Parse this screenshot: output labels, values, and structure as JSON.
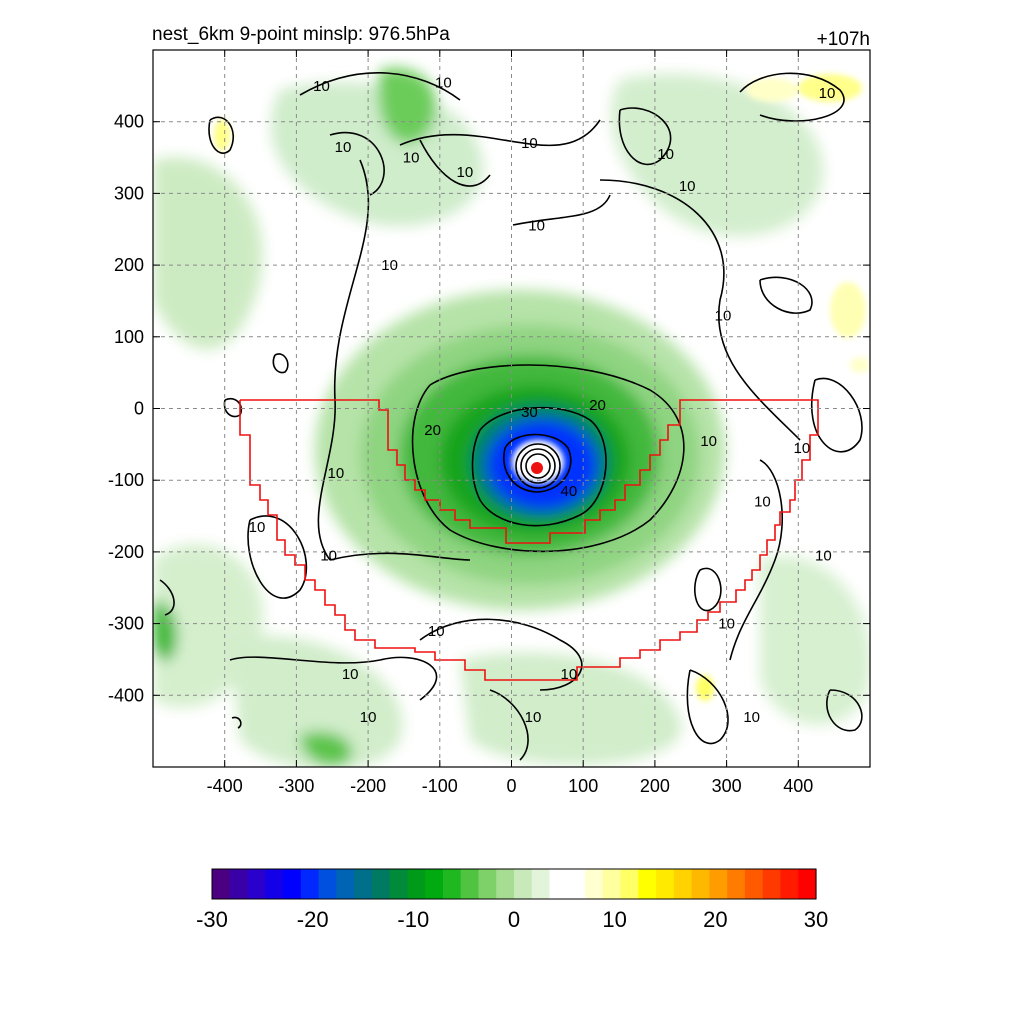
{
  "chart_data": {
    "type": "heatmap",
    "title": "nest_6km  9-point minslp: 976.5hPa",
    "subtitle": "+107h",
    "xlabel": "",
    "ylabel": "",
    "xlim": [
      -500,
      500
    ],
    "ylim": [
      -500,
      500
    ],
    "x_ticks": [
      -400,
      -300,
      -200,
      -100,
      0,
      100,
      200,
      300,
      400
    ],
    "y_ticks": [
      400,
      300,
      200,
      100,
      0,
      -100,
      -200,
      -300,
      -400
    ],
    "grid": true,
    "storm_center": {
      "x": 35,
      "y": -82
    },
    "colorbar": {
      "ticks": [
        -30,
        -20,
        -10,
        0,
        10,
        20,
        30
      ],
      "range": [
        -30,
        30
      ],
      "colors": [
        "#4b0082",
        "#3a00a8",
        "#2a00cc",
        "#1400e8",
        "#0000ff",
        "#0028ff",
        "#0050e0",
        "#0064b4",
        "#00708a",
        "#007a62",
        "#008a3a",
        "#009a1a",
        "#00aa10",
        "#20b820",
        "#50c440",
        "#7ed068",
        "#a6dd92",
        "#c8eabb",
        "#e2f4da",
        "#ffffff",
        "#ffffff",
        "#ffffd0",
        "#ffffa0",
        "#ffff66",
        "#ffff00",
        "#ffea00",
        "#ffd200",
        "#ffb800",
        "#ff9c00",
        "#ff7c00",
        "#ff5a00",
        "#ff3a00",
        "#ff1a00",
        "#ff0000"
      ]
    },
    "contour_labels": [
      {
        "text": "10",
        "x": -265,
        "y": 450
      },
      {
        "text": "10",
        "x": -95,
        "y": 455
      },
      {
        "text": "10",
        "x": -235,
        "y": 365
      },
      {
        "text": "10",
        "x": -140,
        "y": 350
      },
      {
        "text": "10",
        "x": -65,
        "y": 330
      },
      {
        "text": "10",
        "x": 25,
        "y": 370
      },
      {
        "text": "10",
        "x": 35,
        "y": 255
      },
      {
        "text": "10",
        "x": 215,
        "y": 355
      },
      {
        "text": "10",
        "x": 245,
        "y": 310
      },
      {
        "text": "10",
        "x": 440,
        "y": 440
      },
      {
        "text": "10",
        "x": -170,
        "y": 200
      },
      {
        "text": "10",
        "x": 295,
        "y": 130
      },
      {
        "text": "10",
        "x": -245,
        "y": -90
      },
      {
        "text": "10",
        "x": 275,
        "y": -45
      },
      {
        "text": "10",
        "x": 405,
        "y": -55
      },
      {
        "text": "10",
        "x": 350,
        "y": -130
      },
      {
        "text": "10",
        "x": -355,
        "y": -165
      },
      {
        "text": "10",
        "x": -255,
        "y": -205
      },
      {
        "text": "10",
        "x": 435,
        "y": -205
      },
      {
        "text": "10",
        "x": 300,
        "y": -300
      },
      {
        "text": "10",
        "x": -105,
        "y": -310
      },
      {
        "text": "10",
        "x": -225,
        "y": -370
      },
      {
        "text": "10",
        "x": 80,
        "y": -370
      },
      {
        "text": "10",
        "x": -200,
        "y": -430
      },
      {
        "text": "10",
        "x": 30,
        "y": -430
      },
      {
        "text": "10",
        "x": 335,
        "y": -430
      },
      {
        "text": "20",
        "x": 120,
        "y": 5
      },
      {
        "text": "20",
        "x": -110,
        "y": -30
      },
      {
        "text": "30",
        "x": 25,
        "y": -5
      },
      {
        "text": "40",
        "x": 80,
        "y": -115
      }
    ]
  }
}
